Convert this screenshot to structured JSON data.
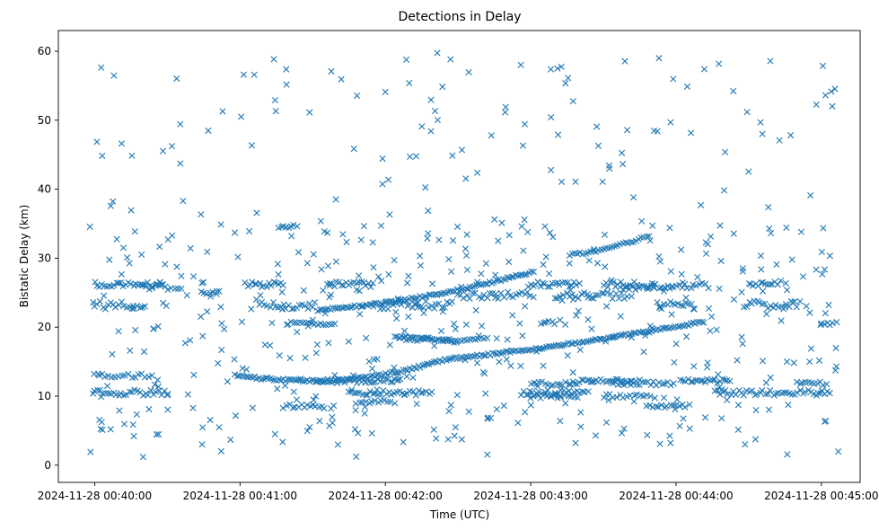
{
  "chart_data": {
    "type": "scatter",
    "title": "Detections in Delay",
    "xlabel": "Time (UTC)",
    "ylabel": "Bistatic Delay (km)",
    "x_unit": "seconds since 2024-11-28 00:40:00",
    "xlim": [
      -15,
      316
    ],
    "ylim": [
      -2.5,
      63
    ],
    "x_ticks": [
      {
        "value": 0,
        "label": "2024-11-28 00:40:00"
      },
      {
        "value": 60,
        "label": "2024-11-28 00:41:00"
      },
      {
        "value": 120,
        "label": "2024-11-28 00:42:00"
      },
      {
        "value": 180,
        "label": "2024-11-28 00:43:00"
      },
      {
        "value": 240,
        "label": "2024-11-28 00:44:00"
      },
      {
        "value": 300,
        "label": "2024-11-28 00:45:00"
      }
    ],
    "y_ticks": [
      {
        "value": 0,
        "label": "0"
      },
      {
        "value": 10,
        "label": "10"
      },
      {
        "value": 20,
        "label": "20"
      },
      {
        "value": 30,
        "label": "30"
      },
      {
        "value": 40,
        "label": "40"
      },
      {
        "value": 50,
        "label": "50"
      },
      {
        "value": 60,
        "label": "60"
      }
    ],
    "marker": "x",
    "color": "#1f77b4",
    "tracks": [
      {
        "name": "rising-track-lower",
        "x_start": 58,
        "x_end": 252,
        "y_start": 13.0,
        "y_end": 20.8,
        "mid_dip": 1.6,
        "step": 0.9
      },
      {
        "name": "rising-track-upper",
        "x_start": 92,
        "x_end": 182,
        "y_start": 22.5,
        "y_end": 28.2,
        "mid_dip": 0,
        "step": 0.9
      },
      {
        "name": "falling-track",
        "x_start": 124,
        "x_end": 150,
        "y_start": 18.6,
        "y_end": 17.8,
        "mid_dip": 0,
        "step": 0.9
      },
      {
        "name": "track-20",
        "x_start": 80,
        "x_end": 100,
        "y_start": 20.6,
        "y_end": 20.4,
        "mid_dip": 0,
        "step": 1.2
      },
      {
        "name": "track-18",
        "x_start": 144,
        "x_end": 162,
        "y_start": 18.1,
        "y_end": 18.4,
        "mid_dip": 0,
        "step": 1.2
      },
      {
        "name": "track-lower-ramp",
        "x_start": 196,
        "x_end": 228,
        "y_start": 30.5,
        "y_end": 33.2,
        "mid_dip": 0,
        "step": 1.1
      }
    ],
    "bands": [
      {
        "y": 26.2,
        "spread": 0.4,
        "segments": [
          [
            0,
            28
          ],
          [
            62,
            78
          ],
          [
            96,
            115
          ],
          [
            180,
            200
          ],
          [
            210,
            225
          ],
          [
            270,
            282
          ]
        ],
        "step": 1.0
      },
      {
        "y": 23.2,
        "spread": 0.6,
        "segments": [
          [
            0,
            22
          ],
          [
            68,
            92
          ],
          [
            118,
            148
          ],
          [
            232,
            248
          ],
          [
            268,
            292
          ]
        ],
        "step": 1.1
      },
      {
        "y": 24.6,
        "spread": 0.5,
        "segments": [
          [
            150,
            182
          ],
          [
            190,
            220
          ]
        ],
        "step": 1.2
      },
      {
        "y": 25.8,
        "spread": 0.4,
        "segments": [
          [
            20,
            36
          ],
          [
            218,
            232
          ]
        ],
        "step": 1.3
      },
      {
        "y": 12.2,
        "spread": 0.3,
        "segments": [
          [
            92,
            126
          ],
          [
            200,
            222
          ],
          [
            242,
            262
          ]
        ],
        "step": 1.0
      },
      {
        "y": 10.5,
        "spread": 0.4,
        "segments": [
          [
            0,
            30
          ],
          [
            105,
            140
          ],
          [
            176,
            204
          ],
          [
            256,
            304
          ]
        ],
        "step": 1.1
      },
      {
        "y": 11.8,
        "spread": 0.3,
        "segments": [
          [
            180,
            200
          ],
          [
            214,
            240
          ],
          [
            290,
            302
          ]
        ],
        "step": 1.2
      },
      {
        "y": 13.0,
        "spread": 0.3,
        "segments": [
          [
            0,
            24
          ]
        ],
        "step": 1.4
      },
      {
        "y": 8.5,
        "spread": 0.3,
        "segments": [
          [
            78,
            96
          ],
          [
            228,
            244
          ]
        ],
        "step": 1.2
      },
      {
        "y": 10.0,
        "spread": 0.3,
        "segments": [
          [
            180,
            200
          ],
          [
            210,
            232
          ]
        ],
        "step": 1.4
      },
      {
        "y": 9.2,
        "spread": 0.3,
        "segments": [
          [
            108,
            124
          ]
        ],
        "step": 1.3
      },
      {
        "y": 26.0,
        "spread": 0.4,
        "segments": [
          [
            228,
            254
          ]
        ],
        "step": 1.2
      },
      {
        "y": 34.6,
        "spread": 0.2,
        "segments": [
          [
            76,
            82
          ]
        ],
        "step": 1.0
      },
      {
        "y": 25.0,
        "spread": 0.3,
        "segments": [
          [
            44,
            52
          ]
        ],
        "step": 1.2
      },
      {
        "y": 20.6,
        "spread": 0.3,
        "segments": [
          [
            184,
            190
          ],
          [
            300,
            306
          ]
        ],
        "step": 1.2
      },
      {
        "y": 18.3,
        "spread": 0.3,
        "segments": [
          [
            126,
            140
          ]
        ],
        "step": 1.2
      }
    ],
    "scatter_noise": {
      "count": 560,
      "x_range": [
        -2,
        308
      ],
      "y_range": [
        0.5,
        59.8
      ],
      "seed": 4242
    }
  }
}
